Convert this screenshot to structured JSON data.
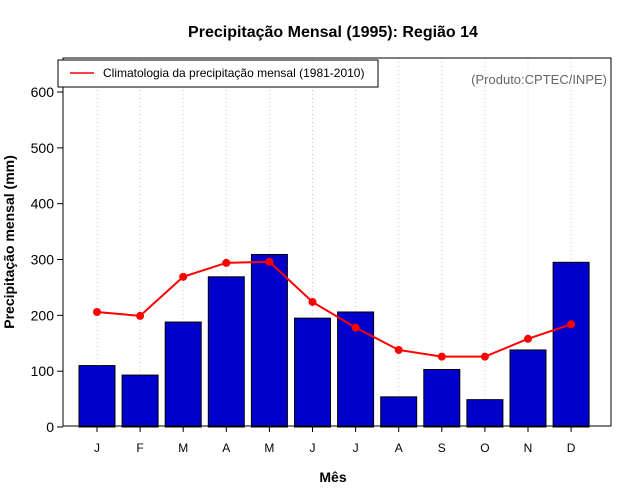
{
  "chart_data": {
    "type": "bar",
    "title": "Precipitação Mensal (1995): Região 14",
    "xlabel": "Mês",
    "ylabel": "Precipitação mensal (mm)",
    "ylim": [
      0,
      660
    ],
    "yticks": [
      0,
      100,
      200,
      300,
      400,
      500,
      600
    ],
    "categories": [
      "J",
      "F",
      "M",
      "A",
      "M",
      "J",
      "J",
      "A",
      "S",
      "O",
      "N",
      "D"
    ],
    "series": [
      {
        "name": "Precipitação mensal (1995)",
        "type": "bar",
        "color": "#0000cd",
        "values": [
          110,
          93,
          188,
          269,
          309,
          195,
          206,
          54,
          103,
          49,
          138,
          295
        ]
      },
      {
        "name": "Climatologia da precipitação mensal (1981-2010)",
        "type": "line",
        "color": "#ff0000",
        "values": [
          206,
          199,
          269,
          294,
          296,
          224,
          178,
          138,
          126,
          126,
          158,
          184
        ]
      }
    ],
    "legend": {
      "position": "top-left",
      "entries": [
        "Climatologia da precipitação mensal (1981-2010)"
      ]
    },
    "annotation": "(Produto:CPTEC/INPE)",
    "grid": "vertical-dotted"
  },
  "colors": {
    "bar_fill": "#0000cd",
    "line": "#ff0000",
    "grid": "#cccccc",
    "credit_text": "#666666"
  }
}
